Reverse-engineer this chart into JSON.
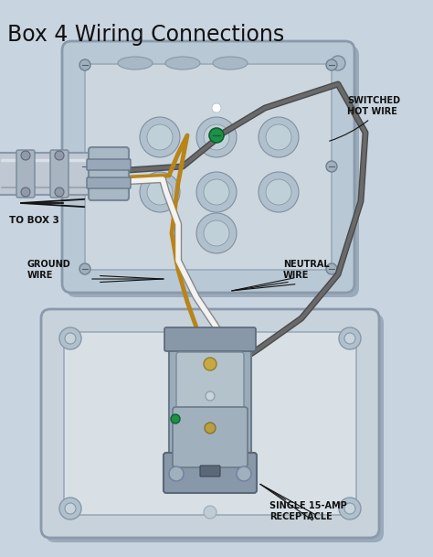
{
  "title": "Box 4 Wiring Connections",
  "title_fontsize": 17,
  "bg_color": "#c8d4e0",
  "label_switched_hot": "SWITCHED\nHOT WIRE",
  "label_ground": "GROUND\nWIRE",
  "label_neutral": "NEUTRAL\nWIRE",
  "label_tobox3": "TO BOX 3",
  "label_receptacle": "SINGLE 15-AMP\nRECEPTACLE",
  "wire_hot_color": "#4a4a4a",
  "wire_ground_color": "#b8851a",
  "wire_neutral_color": "#f0f0f0",
  "wire_neutral_edge": "#cccccc",
  "box_fc": "#b8c8d4",
  "box_fc2": "#c8d8e0",
  "box_ec": "#8a9aac",
  "inner_fc": "#ccd6de",
  "inner_ec": "#9aaabb",
  "conduit_fc": "#c0c8d2",
  "conduit_ec": "#8898a8",
  "label_fontsize": 7.0,
  "label_color": "#111111",
  "screw_fc": "#a0b0bc",
  "screw_ec": "#708090",
  "ko_fc": "#b0c0cc",
  "ko_ec": "#8090a0"
}
